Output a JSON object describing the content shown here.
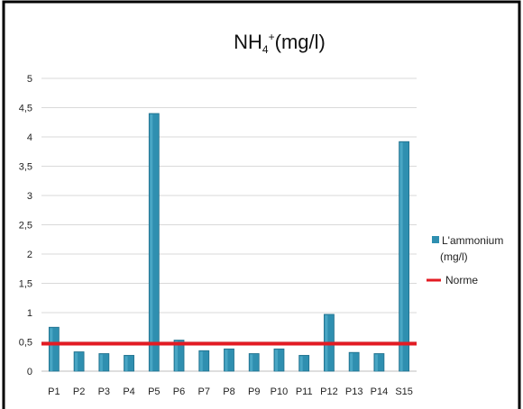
{
  "chart_data": {
    "type": "bar",
    "title": {
      "main": "NH",
      "sub": "4",
      "sup": "+",
      "unit": "(mg/l)"
    },
    "categories": [
      "P1",
      "P2",
      "P3",
      "P4",
      "P5",
      "P6",
      "P7",
      "P8",
      "P9",
      "P10",
      "P11",
      "P12",
      "P13",
      "P14",
      "S15"
    ],
    "series": [
      {
        "name": "L'ammonium (mg/l)",
        "legend_lines": [
          "L'ammonium",
          "(mg/l)"
        ],
        "type": "bar",
        "color": "#2f8fb0",
        "values": [
          0.75,
          0.33,
          0.3,
          0.27,
          4.4,
          0.53,
          0.35,
          0.38,
          0.3,
          0.38,
          0.27,
          0.97,
          0.32,
          0.3,
          3.92
        ]
      },
      {
        "name": "Norme",
        "type": "line",
        "color": "#e31b23",
        "value": 0.47
      }
    ],
    "yticks": [
      "0",
      "0,5",
      "1",
      "1,5",
      "2",
      "2,5",
      "3",
      "3,5",
      "4",
      "4,5",
      "5"
    ],
    "ylim": [
      0,
      5
    ],
    "grid": true,
    "legend_position": "right"
  }
}
